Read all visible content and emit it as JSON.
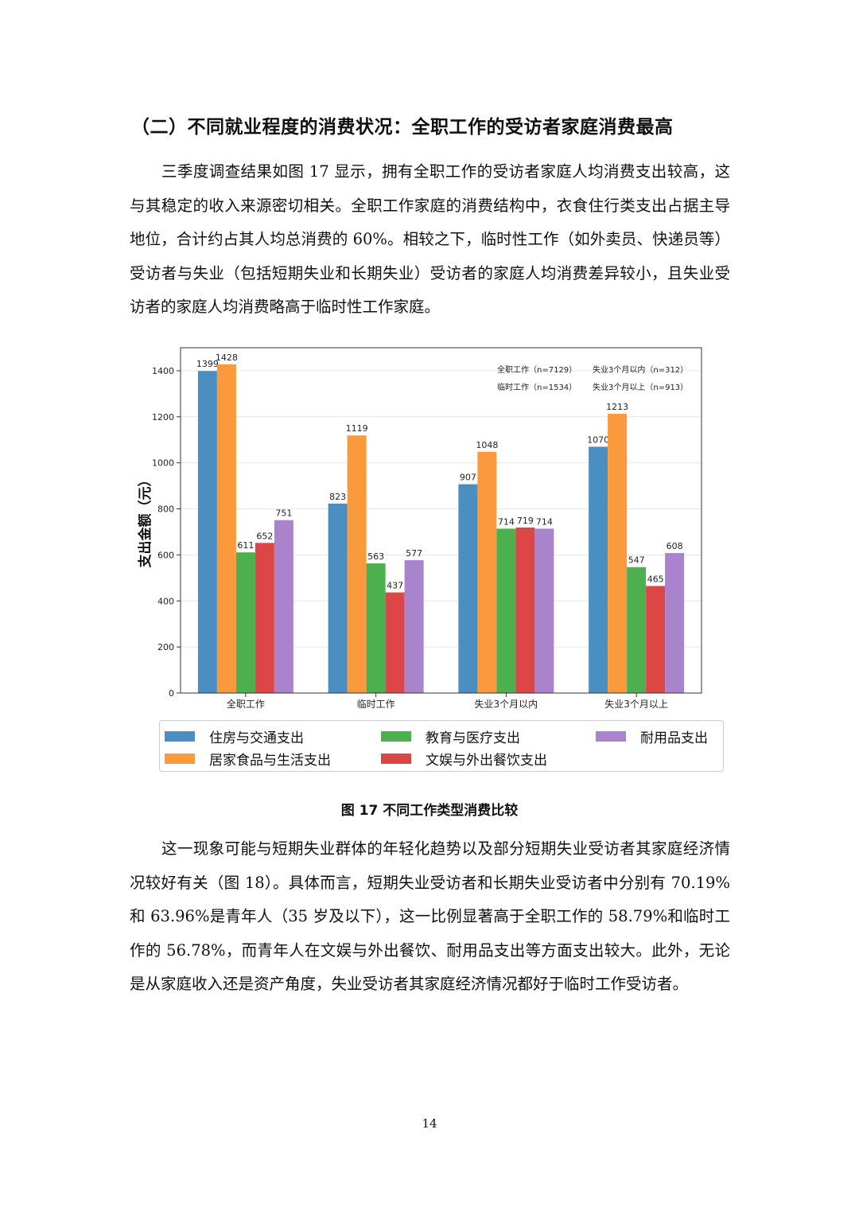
{
  "heading": "（二）不同就业程度的消费状况：全职工作的受访者家庭消费最高",
  "paragraph1": "三季度调查结果如图 17 显示，拥有全职工作的受访者家庭人均消费支出较高，这与其稳定的收入来源密切相关。全职工作家庭的消费结构中，衣食住行类支出占据主导地位，合计约占其人均总消费的 60%。相较之下，临时性工作（如外卖员、快递员等）受访者与失业（包括短期失业和长期失业）受访者的家庭人均消费差异较小，且失业受访者的家庭人均消费略高于临时性工作家庭。",
  "figure_caption": "图 17 不同工作类型消费比较",
  "paragraph2": "这一现象可能与短期失业群体的年轻化趋势以及部分短期失业受访者其家庭经济情况较好有关（图 18）。具体而言，短期失业受访者和长期失业受访者中分别有 70.19%和 63.96%是青年人（35 岁及以下），这一比例显著高于全职工作的 58.79%和临时工作的 56.78%，而青年人在文娱与外出餐饮、耐用品支出等方面支出较大。此外，无论是从家庭收入还是资产角度，失业受访者其家庭经济情况都好于临时工作受访者。",
  "page_number": "14",
  "chart_data": {
    "type": "bar",
    "categories": [
      "全职工作",
      "临时工作",
      "失业3个月以内",
      "失业3个月以上"
    ],
    "series": [
      {
        "name": "住房与交通支出",
        "color": "#4a8ec2",
        "values": [
          1399,
          823,
          907,
          1070
        ]
      },
      {
        "name": "居家食品与生活支出",
        "color": "#fb9a3c",
        "values": [
          1428,
          1119,
          1048,
          1213
        ]
      },
      {
        "name": "教育与医疗支出",
        "color": "#4db04e",
        "values": [
          611,
          563,
          714,
          547
        ]
      },
      {
        "name": "文娱与外出餐饮支出",
        "color": "#dc4646",
        "values": [
          652,
          437,
          719,
          465
        ]
      },
      {
        "name": "耐用品支出",
        "color": "#a984cc",
        "values": [
          751,
          577,
          714,
          608
        ]
      }
    ],
    "ylabel": "支出金额（元）",
    "xlabel": "",
    "ylim": [
      0,
      1500
    ],
    "yticks": [
      0,
      200,
      400,
      600,
      800,
      1000,
      1200,
      1400
    ],
    "grid": true,
    "sample_sizes": [
      "全职工作（n=7129）",
      "临时工作（n=1534）",
      "失业3个月以内（n=312）",
      "失业3个月以上（n=913）"
    ],
    "legend_position": "bottom"
  }
}
